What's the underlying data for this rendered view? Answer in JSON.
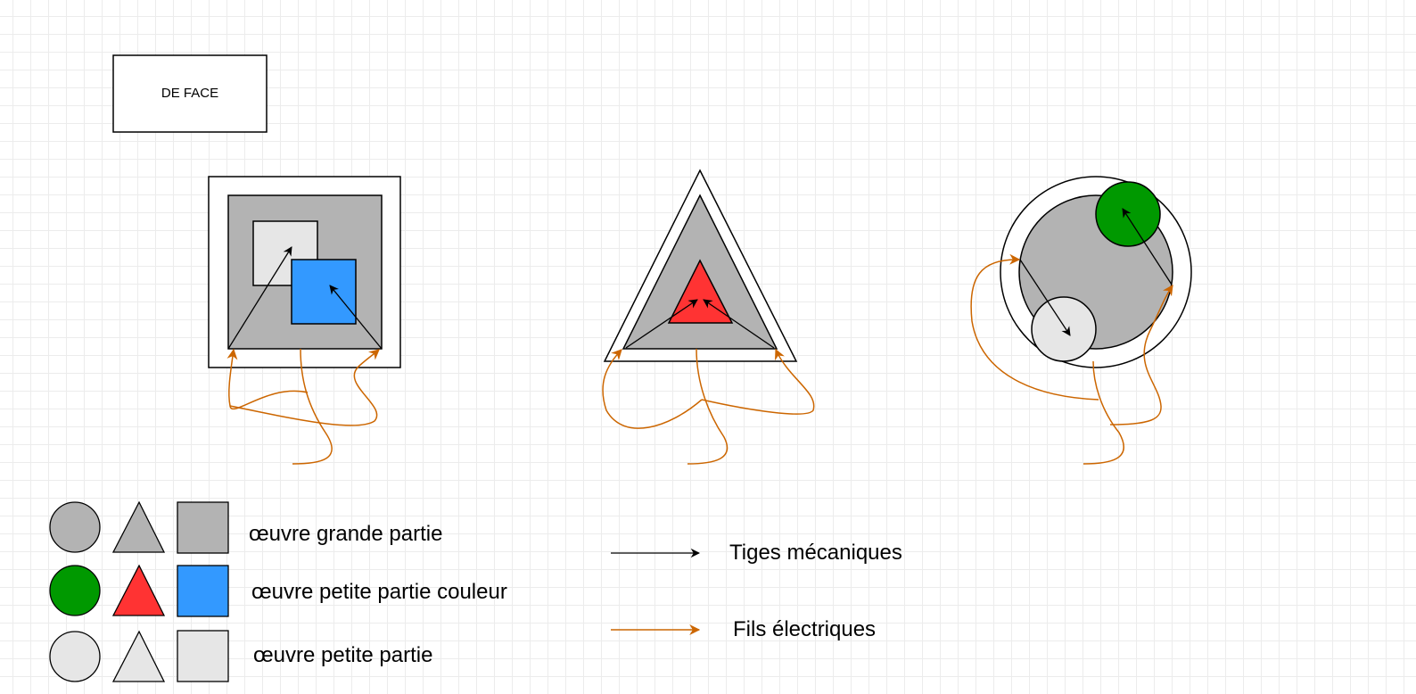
{
  "title_box": {
    "text": "DE FACE"
  },
  "legend": {
    "rows": [
      {
        "label": "œuvre grande partie",
        "color": "#b3b3b3"
      },
      {
        "label": "œuvre petite partie couleur",
        "colors": {
          "circle": "#009900",
          "triangle": "#ff3333",
          "square": "#3399ff"
        }
      },
      {
        "label": "œuvre petite partie",
        "color": "#e6e6e6"
      }
    ],
    "lines": [
      {
        "label": "Tiges mécaniques",
        "color": "#000000"
      },
      {
        "label": "Fils électriques",
        "color": "#cc6600"
      }
    ]
  },
  "colors": {
    "frame": "#000000",
    "grande_partie": "#b3b3b3",
    "petite_partie": "#e6e6e6",
    "couleur_green": "#009900",
    "couleur_red": "#ff3333",
    "couleur_blue": "#3399ff",
    "wire": "#cc6600",
    "rod": "#000000"
  }
}
